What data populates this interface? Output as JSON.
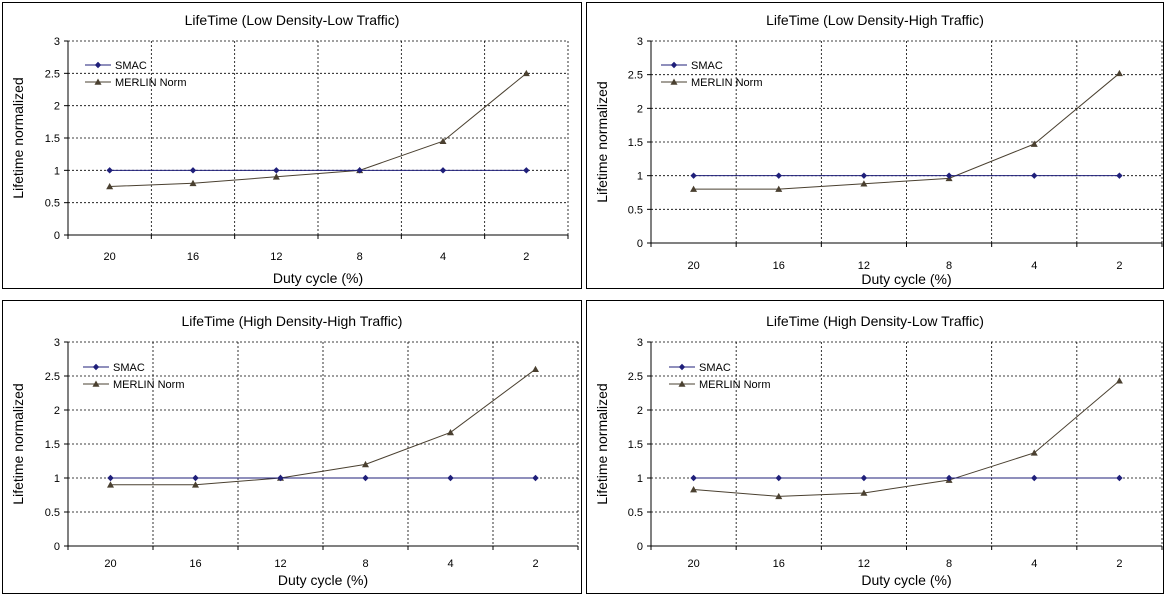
{
  "chart_data": [
    {
      "type": "line",
      "title": "LifeTime (Low Density-Low Traffic)",
      "xlabel": "Duty cycle (%)",
      "ylabel": "Lifetime normalized",
      "categories": [
        "20",
        "16",
        "12",
        "8",
        "4",
        "2"
      ],
      "ylim": [
        0,
        3
      ],
      "yticks": [
        "0",
        "0.5",
        "1",
        "1.5",
        "2",
        "2.5",
        "3"
      ],
      "grid": true,
      "legend_position": "top-left",
      "series": [
        {
          "name": "SMAC",
          "values": [
            1,
            1,
            1,
            1,
            1,
            1
          ],
          "color": "#1f1f7a",
          "marker": "diamond"
        },
        {
          "name": "MERLIN Norm",
          "values": [
            0.75,
            0.8,
            0.9,
            1.0,
            1.45,
            2.5
          ],
          "color": "#4a4030",
          "marker": "triangle"
        }
      ]
    },
    {
      "type": "line",
      "title": "LifeTime (Low Density-High Traffic)",
      "xlabel": "Duty cycle (%)",
      "ylabel": "Lifetime normalized",
      "categories": [
        "20",
        "16",
        "12",
        "8",
        "4",
        "2"
      ],
      "ylim": [
        0,
        3
      ],
      "yticks": [
        "0",
        "0.5",
        "1",
        "1.5",
        "2",
        "2.5",
        "3"
      ],
      "grid": true,
      "legend_position": "top-left",
      "series": [
        {
          "name": "SMAC",
          "values": [
            1,
            1,
            1,
            1,
            1,
            1
          ],
          "color": "#1f1f7a",
          "marker": "diamond"
        },
        {
          "name": "MERLIN Norm",
          "values": [
            0.8,
            0.8,
            0.88,
            0.96,
            1.47,
            2.52
          ],
          "color": "#4a4030",
          "marker": "triangle"
        }
      ]
    },
    {
      "type": "line",
      "title": "LifeTime (High Density-High Traffic)",
      "xlabel": "Duty cycle (%)",
      "ylabel": "Lifetime normalized",
      "categories": [
        "20",
        "16",
        "12",
        "8",
        "4",
        "2"
      ],
      "ylim": [
        0,
        3
      ],
      "yticks": [
        "0",
        "0.5",
        "1",
        "1.5",
        "2",
        "2.5",
        "3"
      ],
      "grid": true,
      "legend_position": "top-left",
      "series": [
        {
          "name": "SMAC",
          "values": [
            1,
            1,
            1,
            1,
            1,
            1
          ],
          "color": "#1f1f7a",
          "marker": "diamond"
        },
        {
          "name": "MERLIN Norm",
          "values": [
            0.9,
            0.9,
            1.0,
            1.2,
            1.67,
            2.6
          ],
          "color": "#4a4030",
          "marker": "triangle"
        }
      ]
    },
    {
      "type": "line",
      "title": "LifeTime (High Density-Low Traffic)",
      "xlabel": "Duty cycle (%)",
      "ylabel": "Lifetime normalized",
      "categories": [
        "20",
        "16",
        "12",
        "8",
        "4",
        "2"
      ],
      "ylim": [
        0,
        3
      ],
      "yticks": [
        "0",
        "0.5",
        "1",
        "1.5",
        "2",
        "2.5",
        "3"
      ],
      "grid": true,
      "legend_position": "top-left",
      "series": [
        {
          "name": "SMAC",
          "values": [
            1,
            1,
            1,
            1,
            1,
            1
          ],
          "color": "#1f1f7a",
          "marker": "diamond"
        },
        {
          "name": "MERLIN Norm",
          "values": [
            0.83,
            0.73,
            0.78,
            0.97,
            1.37,
            2.43
          ],
          "color": "#4a4030",
          "marker": "triangle"
        }
      ]
    }
  ]
}
